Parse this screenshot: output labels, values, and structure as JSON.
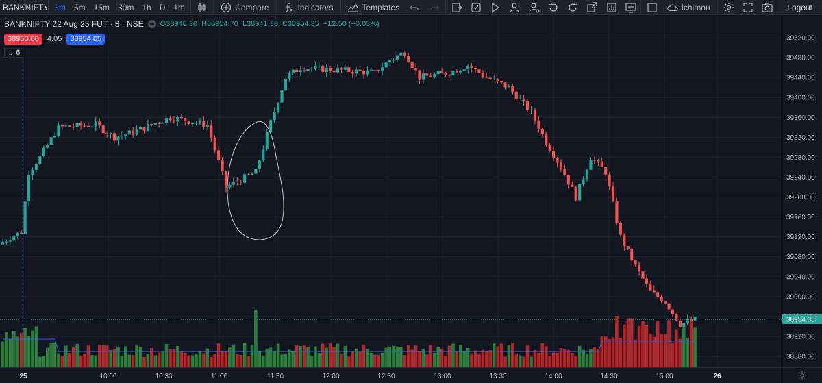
{
  "toolbar": {
    "symbol": "BANKNIFTY 2",
    "intervals": [
      "3m",
      "5m",
      "15m",
      "30m",
      "1h",
      "D",
      "1m"
    ],
    "active_interval": "3m",
    "compare_label": "Compare",
    "indicators_label": "Indicators",
    "templates_label": "Templates",
    "layout_name": "ichimou",
    "logout_label": "Logout"
  },
  "legend": {
    "symbol_title": "BANKNIFTY 22 Aug 25 FUT · 3 · NSE",
    "open_key": "O",
    "open": "38948.30",
    "high_key": "H",
    "high": "38954.70",
    "low_key": "L",
    "low": "38941.30",
    "close_key": "C",
    "close": "38954.35",
    "change": "+12.50 (+0.03%)"
  },
  "quote": {
    "bid": "38950.00",
    "spread": "4.05",
    "ask": "38954.05"
  },
  "collapse": {
    "label": "6"
  },
  "colors": {
    "up": "#26a69a",
    "down": "#ef5350",
    "vol_up": "#2e8b3e",
    "vol_down": "#c62828",
    "ma": "#2962ff",
    "bg": "#131722"
  },
  "chart_data": {
    "type": "candlestick",
    "price_ticks": [
      "39520.00",
      "39480.00",
      "39440.00",
      "39400.00",
      "39360.00",
      "39320.00",
      "39280.00",
      "39240.00",
      "39200.00",
      "39160.00",
      "39120.00",
      "39080.00",
      "39040.00",
      "39000.00",
      "38960.00",
      "38920.00",
      "38880.00"
    ],
    "time_ticks": [
      "25",
      "10:00",
      "10:30",
      "11:00",
      "11:30",
      "12:00",
      "12:30",
      "13:00",
      "13:30",
      "14:00",
      "14:30",
      "15:00",
      "26"
    ],
    "last_price": "38954.35",
    "ylim": [
      38860,
      39545
    ]
  }
}
